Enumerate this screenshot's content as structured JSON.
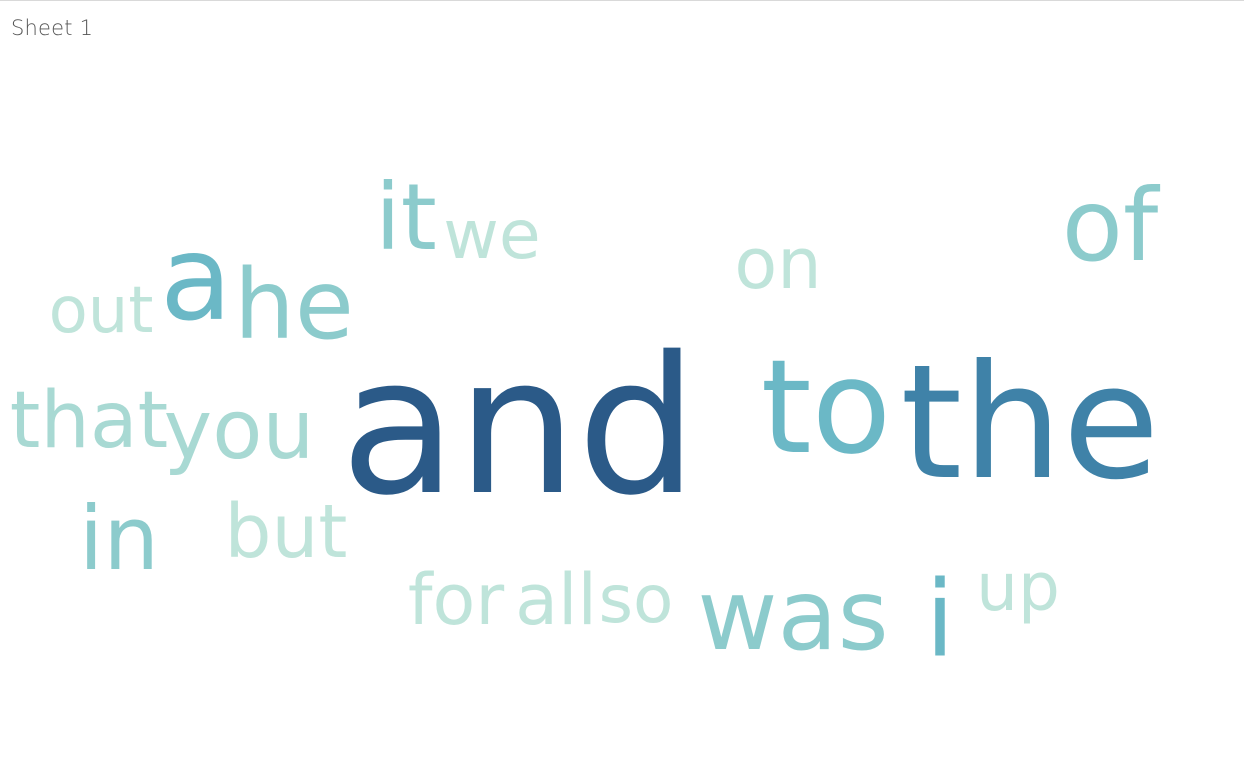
{
  "sheet": {
    "title": "Sheet 1"
  },
  "chart_data": {
    "type": "word_cloud",
    "color_scale": [
      "#bfe4da",
      "#a8d9d3",
      "#8ccbcc",
      "#6bb8c6",
      "#3f82a8",
      "#2b5a88"
    ],
    "words": [
      {
        "text": "and",
        "weight": 100
      },
      {
        "text": "the",
        "weight": 74
      },
      {
        "text": "to",
        "weight": 62
      },
      {
        "text": "a",
        "weight": 56
      },
      {
        "text": "i",
        "weight": 50
      },
      {
        "text": "of",
        "weight": 48
      },
      {
        "text": "was",
        "weight": 47
      },
      {
        "text": "he",
        "weight": 46
      },
      {
        "text": "it",
        "weight": 44
      },
      {
        "text": "in",
        "weight": 43
      },
      {
        "text": "you",
        "weight": 40
      },
      {
        "text": "that",
        "weight": 38
      },
      {
        "text": "but",
        "weight": 36
      },
      {
        "text": "on",
        "weight": 34
      },
      {
        "text": "we",
        "weight": 33
      },
      {
        "text": "up",
        "weight": 32
      },
      {
        "text": "out",
        "weight": 32
      },
      {
        "text": "for",
        "weight": 33
      },
      {
        "text": "all",
        "weight": 33
      },
      {
        "text": "so",
        "weight": 32
      }
    ]
  }
}
